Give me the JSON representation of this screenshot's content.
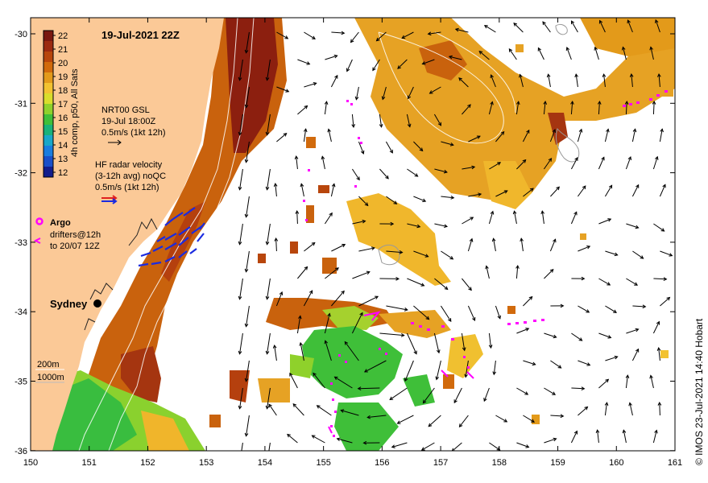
{
  "title": "19-Jul-2021 22Z",
  "x_ticks": [
    "150",
    "151",
    "152",
    "153",
    "154",
    "155",
    "156",
    "157",
    "158",
    "159",
    "160",
    "161"
  ],
  "y_ticks": [
    "-30",
    "-31",
    "-32",
    "-33",
    "-34",
    "-35",
    "-36"
  ],
  "colorbar": {
    "label": "4h comp, p50, All Sats",
    "ticks": [
      "22",
      "21",
      "20",
      "19",
      "18",
      "17",
      "16",
      "15",
      "14",
      "13",
      "12"
    ],
    "colors": [
      "#7a1810",
      "#9c2a10",
      "#b8460c",
      "#d16a0c",
      "#e39a1a",
      "#f2c230",
      "#d9dd2b",
      "#8fd12b",
      "#3fbf39",
      "#19b27a",
      "#19a7c9",
      "#1a7ddf",
      "#1a4fc9",
      "#131d8c"
    ]
  },
  "legend": {
    "gsl_line1": "NRT00 GSL",
    "gsl_line2": "19-Jul 18:00Z",
    "gsl_line3": "0.5m/s (1kt 12h)",
    "radar_line1": "HF radar velocity",
    "radar_line2": "(3-12h avg) noQC",
    "radar_line3": "0.5m/s (1kt 12h)",
    "argo": "Argo",
    "drifters_line1": "drifters@12h",
    "drifters_line2": "to 20/07 12Z",
    "depth1": "200m",
    "depth2": "1000m"
  },
  "place_sydney": "Sydney",
  "credit": "© IMOS 23-Jul-2021 14:40 Hobart",
  "colors": {
    "land": "#fbc997",
    "ocean_warm": "#e6a224",
    "ocean_hot": "#b7460f",
    "ocean_dark": "#7d1a0e",
    "cold_green": "#3fbe39",
    "argo": "#ff00ff",
    "radar": "#1a2be0"
  }
}
